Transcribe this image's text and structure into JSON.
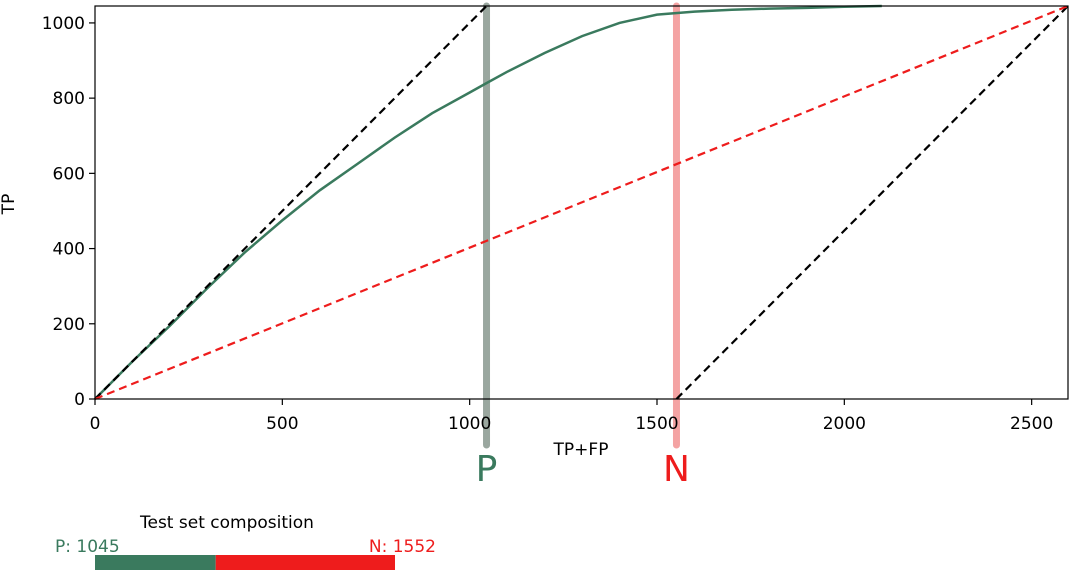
{
  "chart_data": {
    "type": "line",
    "title": "",
    "xlabel": "TP+FP",
    "ylabel": "TP",
    "xlim": [
      0,
      2597
    ],
    "ylim": [
      0,
      1045
    ],
    "x_ticks": [
      0,
      500,
      1000,
      1500,
      2000,
      2500
    ],
    "y_ticks": [
      0,
      200,
      400,
      600,
      800,
      1000
    ],
    "grid": false,
    "colors": {
      "curve": "#3a7a5e",
      "positive": "#3a7a5e",
      "negative": "#ee1c1c",
      "p_line": "#9aa79f",
      "n_line": "#f4a3a3"
    },
    "series": [
      {
        "style": "solid",
        "x": [
          0,
          100,
          200,
          300,
          400,
          500,
          600,
          700,
          800,
          900,
          1000,
          1045,
          1100,
          1200,
          1300,
          1400,
          1500,
          1600,
          1700,
          1800,
          1900,
          2000,
          2100
        ],
        "y": [
          0,
          100,
          195,
          295,
          390,
          475,
          555,
          625,
          695,
          760,
          815,
          840,
          870,
          920,
          965,
          1000,
          1022,
          1030,
          1035,
          1038,
          1040,
          1043,
          1045
        ]
      },
      {
        "style": "dashed",
        "x": [
          0,
          1045
        ],
        "y": [
          0,
          1045
        ]
      },
      {
        "style": "dashed",
        "x": [
          1552,
          2597
        ],
        "y": [
          0,
          1045
        ]
      },
      {
        "style": "dashed",
        "x": [
          0,
          2597
        ],
        "y": [
          0,
          1045
        ]
      }
    ],
    "markers": [
      {
        "label": "P",
        "x": 1045
      },
      {
        "label": "N",
        "x": 1552
      }
    ]
  },
  "composition": {
    "title": "Test set composition",
    "p_label": "P: 1045",
    "n_label": "N: 1552",
    "p_value": 1045,
    "n_value": 1552
  }
}
